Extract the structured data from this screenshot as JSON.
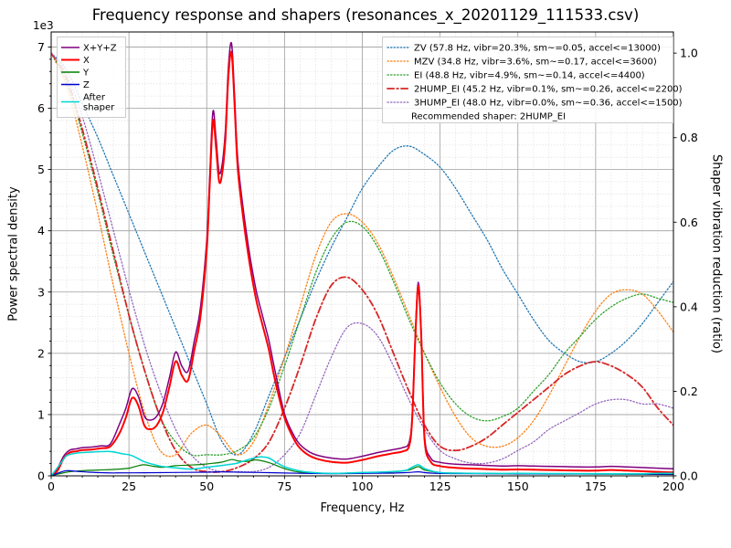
{
  "chart_data": {
    "type": "line",
    "title": "Frequency response and shapers (resonances_x_20201129_111533.csv)",
    "axes": {
      "x": {
        "label": "Frequency, Hz",
        "min": 0,
        "max": 200,
        "major_ticks": [
          0,
          25,
          50,
          75,
          100,
          125,
          150,
          175,
          200
        ],
        "major_tick_labels": [
          "0",
          "25",
          "50",
          "75",
          "100",
          "125",
          "150",
          "175",
          "200"
        ],
        "minor_step": 5
      },
      "y_left": {
        "label": "Power spectral density",
        "offset_label": "1e3",
        "min": 0,
        "max": 7245,
        "major_ticks": [
          0,
          1000,
          2000,
          3000,
          4000,
          5000,
          6000,
          7000
        ],
        "major_tick_labels": [
          "0",
          "1",
          "2",
          "3",
          "4",
          "5",
          "6",
          "7"
        ],
        "minor_step": 200
      },
      "y_right": {
        "label": "Shaper vibration reduction (ratio)",
        "min": 0,
        "max": 1.05,
        "major_ticks": [
          0,
          0.2,
          0.4,
          0.6,
          0.8,
          1.0
        ],
        "major_tick_labels": [
          "0.0",
          "0.2",
          "0.4",
          "0.6",
          "0.8",
          "1.0"
        ]
      }
    },
    "grid": {
      "major_color": "#9e9e9e",
      "minor_color": "#d8d8d8",
      "minor_on": true
    },
    "legend_positions": {
      "psd": "upper left",
      "shapers": "upper right"
    },
    "psd_series": [
      {
        "name": "X+Y+Z",
        "legend": [
          "X+Y+Z"
        ],
        "color": "#800080",
        "dash": "solid",
        "width": 1.5,
        "x": [
          0,
          2,
          4,
          6,
          8,
          10,
          13,
          16,
          19,
          22,
          24,
          26,
          28,
          30,
          32,
          34,
          36,
          38,
          40,
          42,
          44,
          46,
          48,
          50,
          51,
          52,
          53,
          54,
          55,
          56,
          57,
          58,
          59,
          60,
          62,
          64,
          66,
          68,
          70,
          72,
          75,
          78,
          80,
          83,
          86,
          90,
          95,
          100,
          105,
          110,
          113,
          115,
          116,
          117,
          118,
          119,
          120,
          122,
          125,
          130,
          135,
          140,
          145,
          150,
          155,
          160,
          165,
          170,
          175,
          180,
          185,
          190,
          195,
          200
        ],
        "y": [
          0,
          120,
          320,
          420,
          440,
          460,
          470,
          490,
          520,
          850,
          1100,
          1420,
          1300,
          970,
          910,
          980,
          1200,
          1600,
          2020,
          1790,
          1710,
          2200,
          2750,
          3850,
          4950,
          5950,
          5500,
          4950,
          5100,
          5650,
          6700,
          7050,
          6150,
          5150,
          4250,
          3550,
          3000,
          2600,
          2200,
          1700,
          1010,
          660,
          510,
          390,
          330,
          290,
          275,
          320,
          380,
          430,
          460,
          540,
          960,
          2260,
          3160,
          2260,
          660,
          290,
          220,
          190,
          180,
          170,
          160,
          165,
          160,
          155,
          150,
          145,
          145,
          155,
          145,
          135,
          125,
          115
        ]
      },
      {
        "name": "X",
        "legend": [
          "X"
        ],
        "color": "#ff0000",
        "dash": "solid",
        "width": 2,
        "x": [
          0,
          2,
          4,
          6,
          8,
          10,
          13,
          16,
          19,
          22,
          24,
          26,
          28,
          30,
          32,
          34,
          36,
          38,
          40,
          42,
          44,
          46,
          48,
          50,
          51,
          52,
          53,
          54,
          55,
          56,
          57,
          58,
          59,
          60,
          62,
          64,
          66,
          68,
          70,
          72,
          75,
          78,
          80,
          83,
          86,
          90,
          95,
          100,
          105,
          110,
          113,
          115,
          116,
          117,
          118,
          119,
          120,
          122,
          125,
          130,
          135,
          140,
          145,
          150,
          155,
          160,
          165,
          170,
          175,
          180,
          185,
          190,
          195,
          200
        ],
        "y": [
          0,
          80,
          280,
          380,
          400,
          420,
          430,
          450,
          480,
          700,
          950,
          1270,
          1150,
          820,
          760,
          830,
          1050,
          1450,
          1870,
          1640,
          1560,
          2050,
          2600,
          3700,
          4800,
          5800,
          5350,
          4800,
          4950,
          5500,
          6550,
          6900,
          6000,
          5000,
          4100,
          3400,
          2850,
          2450,
          2050,
          1550,
          950,
          600,
          450,
          330,
          270,
          230,
          215,
          260,
          320,
          370,
          400,
          480,
          900,
          2200,
          3100,
          2200,
          600,
          230,
          160,
          130,
          120,
          110,
          100,
          105,
          100,
          95,
          90,
          85,
          85,
          95,
          85,
          75,
          65,
          55
        ]
      },
      {
        "name": "Y",
        "legend": [
          "Y"
        ],
        "color": "#007f00",
        "dash": "solid",
        "width": 1.2,
        "x": [
          0,
          5,
          10,
          15,
          20,
          25,
          28,
          30,
          33,
          36,
          40,
          44,
          48,
          52,
          55,
          58,
          60,
          63,
          66,
          70,
          75,
          80,
          90,
          100,
          110,
          115,
          118,
          120,
          125,
          130,
          140,
          150,
          160,
          170,
          180,
          190,
          200
        ],
        "y": [
          0,
          60,
          85,
          95,
          105,
          125,
          165,
          180,
          155,
          140,
          165,
          175,
          185,
          205,
          225,
          265,
          245,
          235,
          260,
          215,
          120,
          60,
          40,
          55,
          65,
          95,
          150,
          95,
          55,
          45,
          38,
          32,
          30,
          30,
          27,
          25,
          22
        ]
      },
      {
        "name": "Z",
        "legend": [
          "Z"
        ],
        "color": "#0000cd",
        "dash": "solid",
        "width": 1.2,
        "x": [
          0,
          3,
          5,
          8,
          12,
          16,
          20,
          30,
          40,
          50,
          55,
          60,
          70,
          80,
          90,
          100,
          110,
          115,
          118,
          122,
          130,
          145,
          160,
          175,
          190,
          200
        ],
        "y": [
          0,
          60,
          85,
          75,
          60,
          52,
          48,
          50,
          55,
          60,
          65,
          60,
          52,
          42,
          36,
          40,
          45,
          55,
          65,
          45,
          38,
          34,
          32,
          30,
          28,
          28
        ]
      },
      {
        "name": "After shaper",
        "legend": [
          "After",
          "shaper"
        ],
        "color": "#00d5d5",
        "dash": "solid",
        "width": 1.5,
        "x": [
          0,
          3,
          5,
          8,
          10,
          14,
          18,
          20,
          23,
          26,
          30,
          35,
          40,
          45,
          50,
          55,
          58,
          60,
          63,
          66,
          68,
          70,
          72,
          75,
          80,
          85,
          90,
          95,
          100,
          105,
          110,
          114,
          116,
          118,
          120,
          123,
          126,
          130,
          140,
          150,
          160,
          170,
          180,
          190,
          195,
          200
        ],
        "y": [
          0,
          200,
          330,
          370,
          380,
          390,
          400,
          390,
          360,
          330,
          230,
          160,
          130,
          110,
          140,
          170,
          190,
          210,
          260,
          300,
          310,
          290,
          230,
          150,
          80,
          50,
          40,
          45,
          55,
          60,
          70,
          90,
          140,
          180,
          120,
          70,
          50,
          45,
          40,
          40,
          38,
          36,
          35,
          35,
          42,
          40
        ]
      }
    ],
    "shaper_x": [
      0,
      5,
      10,
      15,
      20,
      25,
      30,
      35,
      40,
      45,
      50,
      55,
      60,
      65,
      70,
      75,
      80,
      85,
      90,
      95,
      100,
      105,
      110,
      115,
      120,
      125,
      130,
      135,
      140,
      145,
      150,
      155,
      160,
      165,
      170,
      175,
      180,
      185,
      190,
      195,
      200
    ],
    "shaper_series": [
      {
        "name": "ZV",
        "label": "ZV (57.8 Hz, vibr=20.3%, sm~=0.05, accel<=13000)",
        "color": "#1f77b4",
        "dash": "dotted",
        "width": 1.3,
        "y": [
          1.0,
          0.96,
          0.88,
          0.8,
          0.71,
          0.62,
          0.53,
          0.44,
          0.35,
          0.26,
          0.17,
          0.08,
          0.05,
          0.1,
          0.19,
          0.28,
          0.37,
          0.46,
          0.54,
          0.61,
          0.68,
          0.73,
          0.77,
          0.78,
          0.76,
          0.73,
          0.68,
          0.62,
          0.56,
          0.49,
          0.43,
          0.37,
          0.32,
          0.29,
          0.27,
          0.27,
          0.29,
          0.32,
          0.36,
          0.41,
          0.46
        ]
      },
      {
        "name": "MZV",
        "label": "MZV (34.8 Hz, vibr=3.6%, sm~=0.17, accel<=3600)",
        "color": "#ff7f0e",
        "dash": "dotted",
        "width": 1.3,
        "y": [
          1.0,
          0.92,
          0.78,
          0.62,
          0.45,
          0.29,
          0.15,
          0.06,
          0.05,
          0.1,
          0.12,
          0.09,
          0.05,
          0.08,
          0.17,
          0.28,
          0.4,
          0.52,
          0.6,
          0.62,
          0.6,
          0.55,
          0.47,
          0.38,
          0.29,
          0.21,
          0.14,
          0.09,
          0.07,
          0.07,
          0.09,
          0.13,
          0.19,
          0.26,
          0.33,
          0.39,
          0.43,
          0.44,
          0.43,
          0.39,
          0.34
        ]
      },
      {
        "name": "EI",
        "label": "EI (48.8 Hz, vibr=4.9%, sm~=0.14, accel<=4400)",
        "color": "#2ca02c",
        "dash": "dotted",
        "width": 1.3,
        "y": [
          1.0,
          0.93,
          0.81,
          0.67,
          0.52,
          0.38,
          0.25,
          0.14,
          0.08,
          0.05,
          0.05,
          0.05,
          0.06,
          0.09,
          0.16,
          0.26,
          0.37,
          0.48,
          0.56,
          0.6,
          0.59,
          0.54,
          0.46,
          0.37,
          0.29,
          0.22,
          0.17,
          0.14,
          0.13,
          0.14,
          0.16,
          0.2,
          0.24,
          0.29,
          0.33,
          0.37,
          0.4,
          0.42,
          0.43,
          0.42,
          0.41
        ]
      },
      {
        "name": "2HUMP_EI",
        "label": "2HUMP_EI (45.2 Hz, vibr=0.1%, sm~=0.26, accel<=2200)",
        "color": "#d62728",
        "dash": "dashdot",
        "width": 1.8,
        "y": [
          1.0,
          0.94,
          0.82,
          0.68,
          0.53,
          0.38,
          0.25,
          0.14,
          0.06,
          0.02,
          0.01,
          0.01,
          0.02,
          0.04,
          0.08,
          0.16,
          0.26,
          0.37,
          0.45,
          0.47,
          0.44,
          0.38,
          0.29,
          0.2,
          0.12,
          0.07,
          0.06,
          0.07,
          0.09,
          0.12,
          0.15,
          0.18,
          0.21,
          0.24,
          0.26,
          0.27,
          0.26,
          0.24,
          0.21,
          0.16,
          0.12
        ]
      },
      {
        "name": "3HUMP_EI",
        "label": "3HUMP_EI (48.0 Hz, vibr=0.0%, sm~=0.36, accel<=1500)",
        "color": "#9467bd",
        "dash": "dotted",
        "width": 1.3,
        "y": [
          1.0,
          0.95,
          0.85,
          0.72,
          0.58,
          0.44,
          0.31,
          0.2,
          0.11,
          0.05,
          0.02,
          0.01,
          0.01,
          0.01,
          0.02,
          0.05,
          0.1,
          0.19,
          0.28,
          0.35,
          0.36,
          0.33,
          0.26,
          0.18,
          0.11,
          0.06,
          0.04,
          0.03,
          0.03,
          0.04,
          0.06,
          0.08,
          0.11,
          0.13,
          0.15,
          0.17,
          0.18,
          0.18,
          0.17,
          0.17,
          0.16
        ]
      }
    ],
    "recommended_label": "Recommended shaper: 2HUMP_EI"
  }
}
